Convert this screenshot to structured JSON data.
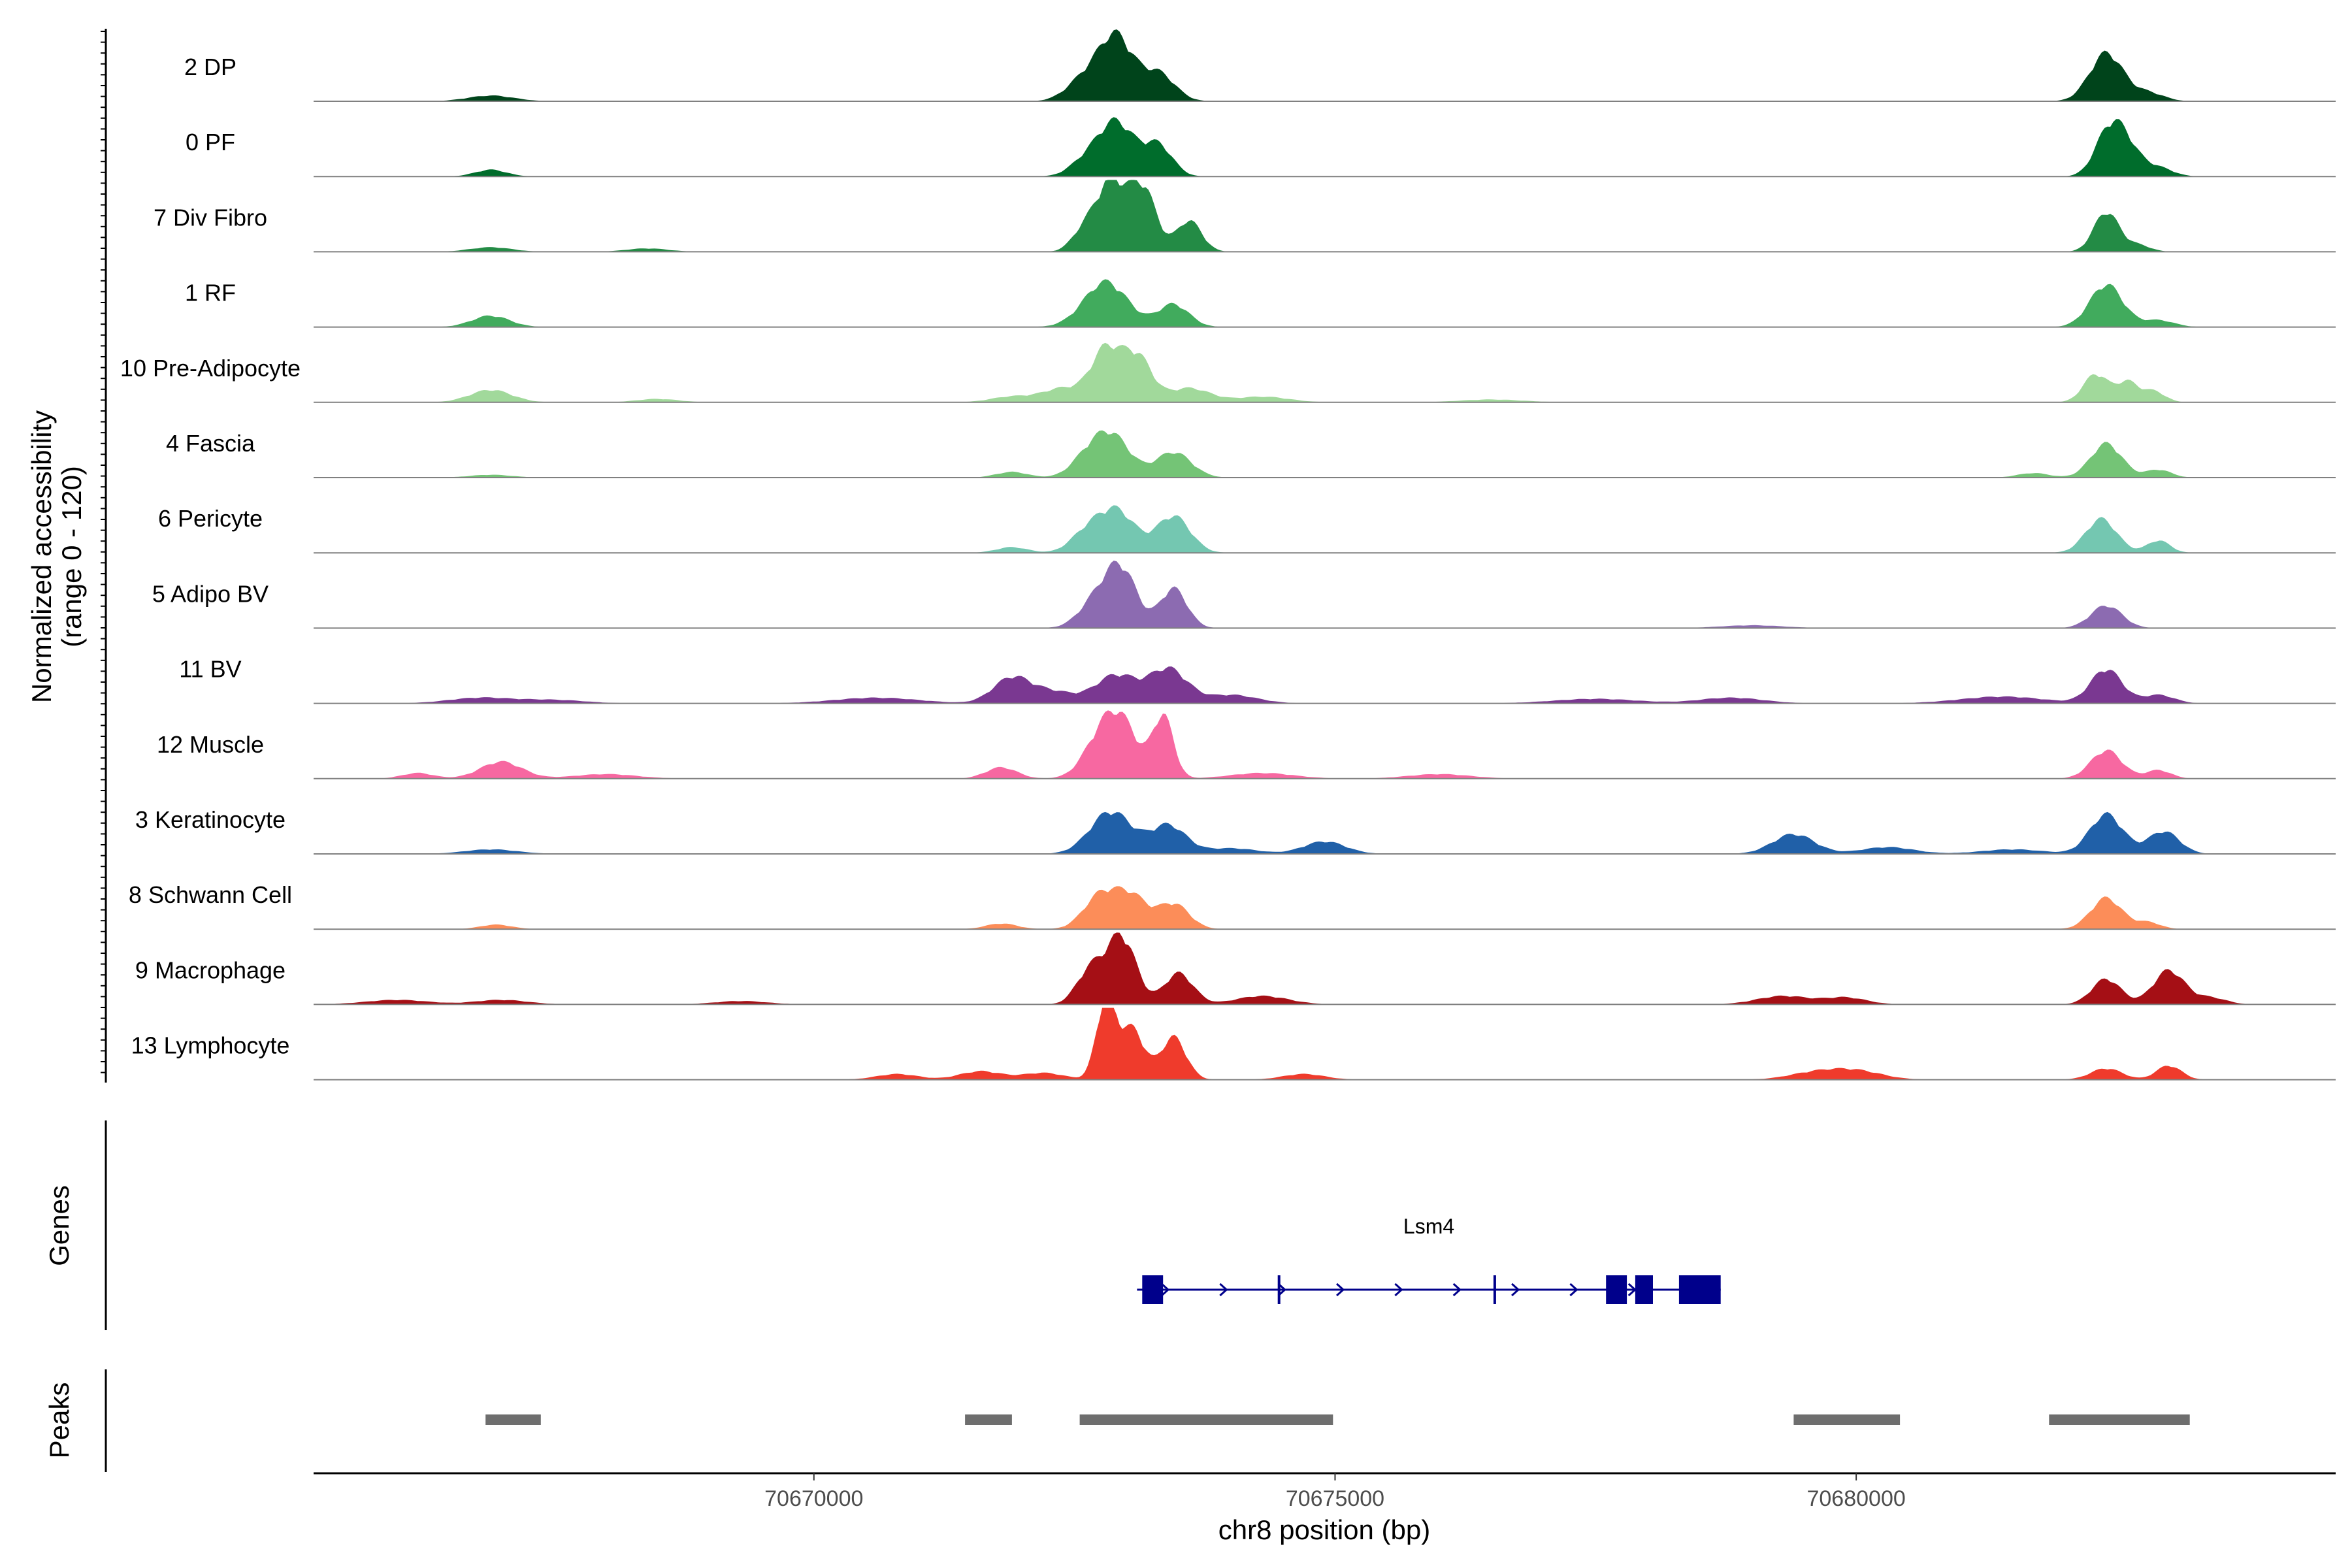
{
  "chart_data": {
    "type": "area",
    "xlabel": "chr8 position (bp)",
    "ylabel": "Normalized accessibility\n(range 0 - 120)",
    "ylim": [
      0,
      120
    ],
    "xlim": [
      70665200,
      70684600
    ],
    "x_ticks": [
      70670000,
      70675000,
      70680000
    ],
    "x_tick_labels": [
      "70670000",
      "70675000",
      "70680000"
    ],
    "panel_labels": {
      "genes": "Genes",
      "peaks": "Peaks"
    },
    "series": [
      {
        "name": "2 DP",
        "color": "#00441b",
        "peaks": [
          [
            70666900,
            220,
            10
          ],
          [
            70672600,
            170,
            40
          ],
          [
            70672900,
            160,
            110
          ],
          [
            70673300,
            160,
            50
          ],
          [
            70682400,
            160,
            85
          ],
          [
            70682800,
            150,
            15
          ]
        ]
      },
      {
        "name": "0 PF",
        "color": "#006d2c",
        "peaks": [
          [
            70666900,
            150,
            12
          ],
          [
            70672600,
            150,
            25
          ],
          [
            70672900,
            170,
            95
          ],
          [
            70673300,
            140,
            55
          ],
          [
            70682400,
            130,
            50
          ],
          [
            70682550,
            150,
            65
          ],
          [
            70682900,
            140,
            15
          ]
        ]
      },
      {
        "name": "7 Div Fibro",
        "color": "#238b45",
        "peaks": [
          [
            70666900,
            200,
            8
          ],
          [
            70668400,
            200,
            6
          ],
          [
            70672600,
            120,
            40
          ],
          [
            70672850,
            130,
            120
          ],
          [
            70673150,
            130,
            115
          ],
          [
            70673600,
            120,
            55
          ],
          [
            70682400,
            120,
            70
          ],
          [
            70682700,
            120,
            12
          ]
        ]
      },
      {
        "name": "1 RF",
        "color": "#41ab5d",
        "peaks": [
          [
            70666900,
            180,
            20
          ],
          [
            70672800,
            210,
            80
          ],
          [
            70673450,
            150,
            40
          ],
          [
            70682400,
            160,
            75
          ],
          [
            70682900,
            150,
            12
          ]
        ]
      },
      {
        "name": "10 Pre-Adipocyte",
        "color": "#a1d99b",
        "peaks": [
          [
            70666900,
            200,
            22
          ],
          [
            70668500,
            200,
            6
          ],
          [
            70671900,
            200,
            10
          ],
          [
            70672400,
            200,
            25
          ],
          [
            70672800,
            140,
            90
          ],
          [
            70673100,
            140,
            80
          ],
          [
            70673600,
            200,
            25
          ],
          [
            70674300,
            250,
            10
          ],
          [
            70676500,
            300,
            5
          ],
          [
            70682300,
            120,
            50
          ],
          [
            70682600,
            100,
            35
          ],
          [
            70682850,
            110,
            20
          ]
        ]
      },
      {
        "name": "4 Fascia",
        "color": "#74c476",
        "peaks": [
          [
            70666900,
            200,
            5
          ],
          [
            70671900,
            150,
            10
          ],
          [
            70672600,
            150,
            25
          ],
          [
            70672850,
            180,
            75
          ],
          [
            70673450,
            170,
            45
          ],
          [
            70681700,
            150,
            8
          ],
          [
            70682400,
            150,
            60
          ],
          [
            70682900,
            120,
            14
          ]
        ]
      },
      {
        "name": "6 Pericyte",
        "color": "#74c7b1",
        "peaks": [
          [
            70671900,
            150,
            10
          ],
          [
            70672600,
            150,
            30
          ],
          [
            70672900,
            180,
            75
          ],
          [
            70673450,
            160,
            65
          ],
          [
            70682350,
            150,
            60
          ],
          [
            70682900,
            110,
            22
          ]
        ]
      },
      {
        "name": "5 Adipo BV",
        "color": "#8c6bb1",
        "peaks": [
          [
            70672700,
            160,
            45
          ],
          [
            70672950,
            150,
            100
          ],
          [
            70673450,
            130,
            70
          ],
          [
            70679000,
            300,
            5
          ],
          [
            70682400,
            150,
            40
          ]
        ]
      },
      {
        "name": "11 BV",
        "color": "#7a3891",
        "peaks": [
          [
            70666800,
            300,
            10
          ],
          [
            70667500,
            300,
            6
          ],
          [
            70670600,
            400,
            10
          ],
          [
            70671900,
            180,
            45
          ],
          [
            70672300,
            200,
            20
          ],
          [
            70672900,
            200,
            50
          ],
          [
            70673400,
            180,
            60
          ],
          [
            70674000,
            250,
            15
          ],
          [
            70677500,
            400,
            8
          ],
          [
            70678800,
            300,
            10
          ],
          [
            70681400,
            400,
            12
          ],
          [
            70682400,
            150,
            60
          ],
          [
            70682900,
            150,
            15
          ]
        ]
      },
      {
        "name": "12 Muscle",
        "color": "#f768a1",
        "peaks": [
          [
            70666200,
            150,
            10
          ],
          [
            70667000,
            200,
            30
          ],
          [
            70668000,
            300,
            8
          ],
          [
            70671800,
            150,
            20
          ],
          [
            70672800,
            180,
            90
          ],
          [
            70673000,
            150,
            55
          ],
          [
            70673350,
            100,
            110
          ],
          [
            70674300,
            300,
            10
          ],
          [
            70676000,
            300,
            8
          ],
          [
            70682400,
            150,
            50
          ],
          [
            70682900,
            120,
            15
          ]
        ]
      },
      {
        "name": "3 Keratinocyte",
        "color": "#2060a8",
        "peaks": [
          [
            70666900,
            250,
            8
          ],
          [
            70672850,
            200,
            75
          ],
          [
            70673400,
            170,
            50
          ],
          [
            70674000,
            250,
            10
          ],
          [
            70674900,
            200,
            22
          ],
          [
            70679400,
            200,
            35
          ],
          [
            70680300,
            250,
            12
          ],
          [
            70681500,
            300,
            8
          ],
          [
            70682400,
            160,
            70
          ],
          [
            70682950,
            150,
            40
          ]
        ]
      },
      {
        "name": "8 Schwann Cell",
        "color": "#fc8d59",
        "peaks": [
          [
            70666950,
            150,
            8
          ],
          [
            70671800,
            150,
            10
          ],
          [
            70672750,
            160,
            60
          ],
          [
            70673050,
            150,
            55
          ],
          [
            70673450,
            150,
            45
          ],
          [
            70682400,
            150,
            55
          ],
          [
            70682800,
            120,
            12
          ]
        ]
      },
      {
        "name": "9 Macrophage",
        "color": "#a50f15",
        "peaks": [
          [
            70666000,
            300,
            8
          ],
          [
            70667000,
            250,
            8
          ],
          [
            70669300,
            250,
            6
          ],
          [
            70672650,
            130,
            60
          ],
          [
            70672950,
            140,
            120
          ],
          [
            70673500,
            140,
            55
          ],
          [
            70674300,
            250,
            15
          ],
          [
            70679300,
            250,
            15
          ],
          [
            70679900,
            200,
            12
          ],
          [
            70682400,
            140,
            45
          ],
          [
            70683000,
            150,
            60
          ],
          [
            70683400,
            150,
            12
          ]
        ]
      },
      {
        "name": "13 Lymphocyte",
        "color": "#ef3b2c",
        "peaks": [
          [
            70670800,
            200,
            10
          ],
          [
            70671600,
            200,
            15
          ],
          [
            70672200,
            200,
            12
          ],
          [
            70672800,
            90,
            140
          ],
          [
            70673050,
            120,
            90
          ],
          [
            70673450,
            120,
            75
          ],
          [
            70674700,
            200,
            10
          ],
          [
            70679600,
            250,
            12
          ],
          [
            70680000,
            250,
            15
          ],
          [
            70682400,
            150,
            20
          ],
          [
            70683000,
            120,
            25
          ]
        ]
      }
    ],
    "gene": {
      "name": "Lsm4",
      "strand": "+",
      "start": 70673100,
      "end": 70678700,
      "exons": [
        [
          70673150,
          70673350
        ],
        [
          70674450,
          70674470
        ],
        [
          70676520,
          70676540
        ],
        [
          70677600,
          70677800
        ],
        [
          70677880,
          70678050
        ],
        [
          70678300,
          70678700
        ]
      ]
    },
    "peaks": [
      [
        70666850,
        70667380
      ],
      [
        70671450,
        70671900
      ],
      [
        70672550,
        70674980
      ],
      [
        70679400,
        70680420
      ],
      [
        70681850,
        70683200
      ]
    ]
  }
}
